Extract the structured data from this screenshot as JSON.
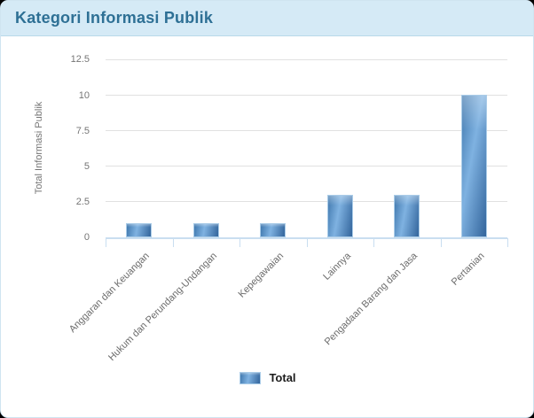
{
  "header": {
    "title": "Kategori Informasi Publik"
  },
  "chart_data": {
    "type": "bar",
    "title": "Kategori Informasi Publik",
    "categories": [
      "Anggaran dan Keuangan",
      "Hukum dan Perundang-Undangan",
      "Kepegawaian",
      "Lainnya",
      "Pengadaan Barang dan Jasa",
      "Pertanian"
    ],
    "series": [
      {
        "name": "Total",
        "values": [
          1,
          1,
          1,
          3,
          3,
          10
        ]
      }
    ],
    "xlabel": "",
    "ylabel": "Total Informasi Publik",
    "y_tick_labels": [
      "0",
      "2.5",
      "5",
      "7.5",
      "10",
      "12.5"
    ],
    "yticks": [
      0,
      2.5,
      5,
      7.5,
      10,
      12.5
    ],
    "ylim": [
      0,
      13.75
    ],
    "grid": true,
    "legend_position": "bottom"
  },
  "colors": {
    "header_bg": "#d5eaf6",
    "header_text": "#2e7095",
    "header_border": "#b9d9e9",
    "card_border": "#cfe4f1",
    "bar_edge_left": "#4078ae",
    "bar_mid": "#7fb2e1",
    "bar_edge_right": "#33659c",
    "bar_outline": "#aacce8",
    "grid": "#e1e1e1",
    "axis": "#c9def0",
    "tick_text": "#757575",
    "axis_label_text": "#6b6b6b",
    "legend_text": "#1c1c1c"
  }
}
